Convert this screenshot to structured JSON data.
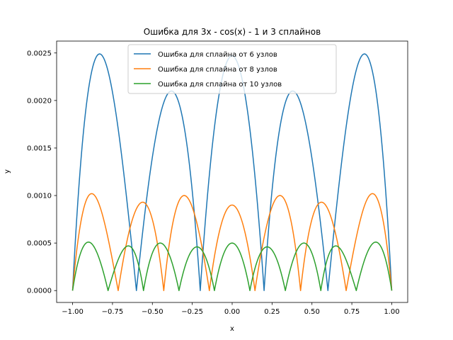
{
  "chart_data": {
    "type": "line",
    "title": "Ошибка для 3x - cos(x) - 1 и 3 сплайнов",
    "xlabel": "x",
    "ylabel": "y",
    "xlim": [
      -1.1,
      1.1
    ],
    "ylim": [
      -0.000125,
      0.002625
    ],
    "xticks": [
      -1.0,
      -0.75,
      -0.5,
      -0.25,
      0.0,
      0.25,
      0.5,
      0.75,
      1.0
    ],
    "xtick_labels": [
      "−1.00",
      "−0.75",
      "−0.50",
      "−0.25",
      "0.00",
      "0.25",
      "0.50",
      "0.75",
      "1.00"
    ],
    "yticks": [
      0.0,
      0.0005,
      0.001,
      0.0015,
      0.002,
      0.0025
    ],
    "ytick_labels": [
      "0.0000",
      "0.0005",
      "0.0010",
      "0.0015",
      "0.0020",
      "0.0025"
    ],
    "grid": false,
    "legend_position": "top-center",
    "series": [
      {
        "name": "Ошибка для сплайна от 6 узлов",
        "color": "#1f77b4",
        "knots": [
          -1.0,
          -0.6,
          -0.2,
          0.2,
          0.6,
          1.0
        ],
        "peaks": [
          {
            "x": -0.83,
            "y": 0.00249
          },
          {
            "x": -0.38,
            "y": 0.0021
          },
          {
            "x": 0.0,
            "y": 0.00247
          },
          {
            "x": 0.38,
            "y": 0.0021
          },
          {
            "x": 0.83,
            "y": 0.00249
          }
        ]
      },
      {
        "name": "Ошибка для сплайна от 8 узлов",
        "color": "#ff7f0e",
        "knots": [
          -1.0,
          -0.7143,
          -0.4286,
          -0.1429,
          0.1429,
          0.4286,
          0.7143,
          1.0
        ],
        "peaks": [
          {
            "x": -0.88,
            "y": 0.00102
          },
          {
            "x": -0.56,
            "y": 0.00093
          },
          {
            "x": -0.3,
            "y": 0.001
          },
          {
            "x": 0.0,
            "y": 0.0009
          },
          {
            "x": 0.3,
            "y": 0.001
          },
          {
            "x": 0.56,
            "y": 0.00093
          },
          {
            "x": 0.88,
            "y": 0.00102
          }
        ]
      },
      {
        "name": "Ошибка для сплайна от 10 узлов",
        "color": "#2ca02c",
        "knots": [
          -1.0,
          -0.7778,
          -0.5556,
          -0.3333,
          -0.1111,
          0.1111,
          0.3333,
          0.5556,
          0.7778,
          1.0
        ],
        "peaks": [
          {
            "x": -0.9,
            "y": 0.00051
          },
          {
            "x": -0.65,
            "y": 0.00047
          },
          {
            "x": -0.45,
            "y": 0.0005
          },
          {
            "x": -0.22,
            "y": 0.00046
          },
          {
            "x": 0.0,
            "y": 0.0005
          },
          {
            "x": 0.22,
            "y": 0.00046
          },
          {
            "x": 0.45,
            "y": 0.0005
          },
          {
            "x": 0.65,
            "y": 0.00047
          },
          {
            "x": 0.9,
            "y": 0.00051
          }
        ]
      }
    ]
  }
}
